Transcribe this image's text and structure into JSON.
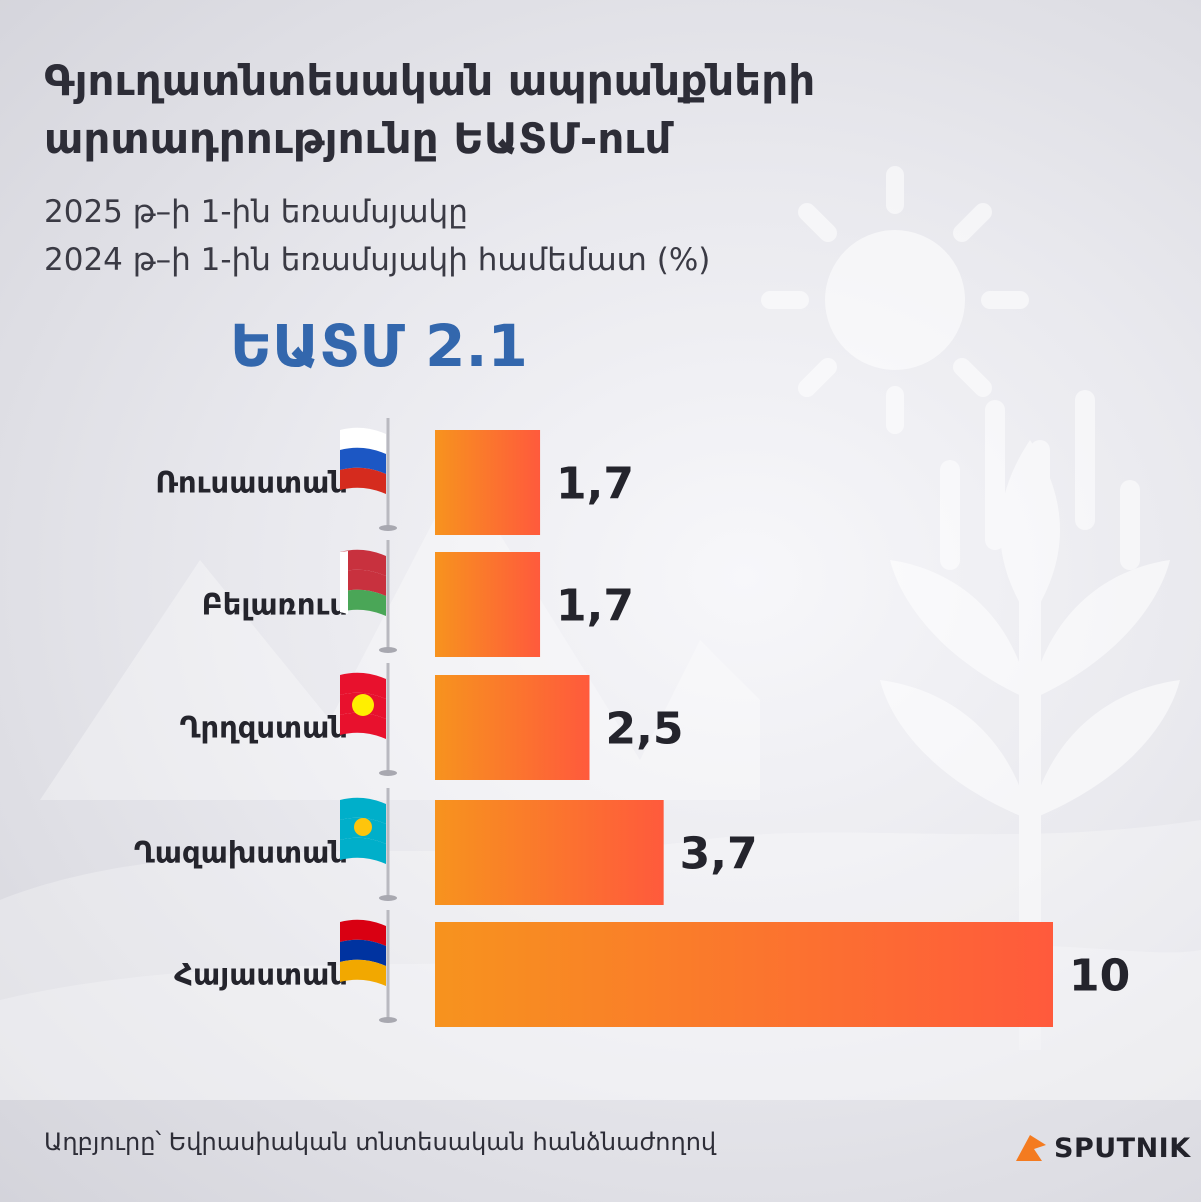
{
  "title_line1": "Գյուղատնտեսական ապրանքների",
  "title_line2": "արտադրությունը ԵԱՏՄ-ում",
  "subtitle_line1": "2025 թ–ի 1-ին եռամսյակը",
  "subtitle_line2": "2024 թ–ի 1-ին եռամսյակի համեմատ (%)",
  "headline": "ԵԱՏՄ 2.1",
  "source": "Աղբյուրը՝ Եվրասիական տնտեսական հանձնաժողով",
  "logo_text": "SPUTNIK",
  "colors": {
    "bar_start": "#f7931e",
    "bar_end": "#ff5a3c",
    "headline": "#3367ad",
    "logo_accent": "#f47b20"
  },
  "chart_data": {
    "type": "bar",
    "orientation": "horizontal",
    "title": "Գյուղատնտեսական ապրանքների արտադրությունը ԵԱՏՄ-ում",
    "categories": [
      "Ռուսաստան",
      "Բելառուս",
      "Ղրղզստան",
      "Ղազախստան",
      "Հայաստան"
    ],
    "values": [
      1.7,
      1.7,
      2.5,
      3.7,
      10
    ],
    "value_labels": [
      "1,7",
      "1,7",
      "2,5",
      "3,7",
      "10"
    ],
    "flags": [
      "russia-flag-icon",
      "belarus-flag-icon",
      "kyrgyzstan-flag-icon",
      "kazakhstan-flag-icon",
      "armenia-flag-icon"
    ],
    "xlim": [
      0,
      10
    ],
    "grid": false,
    "legend": "none"
  }
}
